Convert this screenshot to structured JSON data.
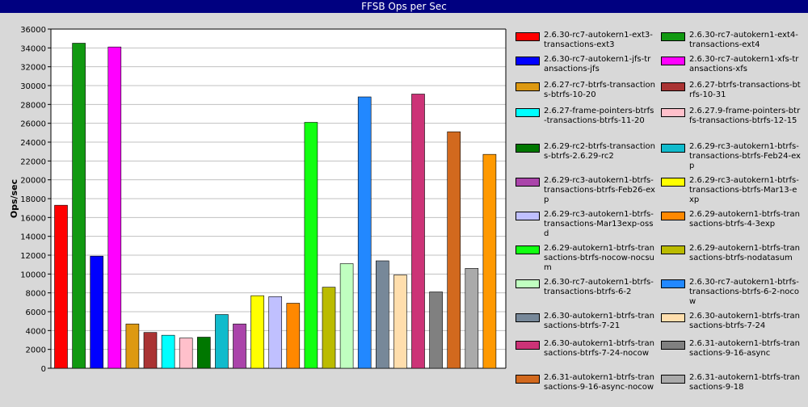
{
  "window": {
    "title": "FFSB Ops per Sec"
  },
  "chart_data": {
    "type": "bar",
    "title": "FFSB Ops per Sec",
    "xlabel": "",
    "ylabel": "Ops/sec",
    "ylim": [
      0,
      36000
    ],
    "yticks": [
      0,
      2000,
      4000,
      6000,
      8000,
      10000,
      12000,
      14000,
      16000,
      18000,
      20000,
      22000,
      24000,
      26000,
      28000,
      30000,
      32000,
      34000,
      36000
    ],
    "grid": true,
    "legend_placement": "right",
    "series": [
      {
        "name": "2.6.30-rc7-autokern1-ext3-transactions-ext3",
        "value": 17300,
        "color": "#ff0000"
      },
      {
        "name": "2.6.30-rc7-autokern1-ext4-transactions-ext4",
        "value": 34500,
        "color": "#119911"
      },
      {
        "name": "2.6.30-rc7-autokern1-jfs-transactions-jfs",
        "value": 11900,
        "color": "#0000ff"
      },
      {
        "name": "2.6.30-rc7-autokern1-xfs-transactions-xfs",
        "value": 34100,
        "color": "#ff00ff"
      },
      {
        "name": "2.6.27-rc7-btrfs-transactions-btrfs-10-20",
        "value": 4700,
        "color": "#dd9911"
      },
      {
        "name": "2.6.27-btrfs-transactions-btrfs-10-31",
        "value": 3800,
        "color": "#aa3333"
      },
      {
        "name": "2.6.27-frame-pointers-btrfs-transactions-btrfs-11-20",
        "value": 3500,
        "color": "#00ffff"
      },
      {
        "name": "2.6.27.9-frame-pointers-btrfs-transactions-btrfs-12-15",
        "value": 3200,
        "color": "#ffc0cb"
      },
      {
        "name": "2.6.29-rc2-btrfs-transactions-btrfs-2.6.29-rc2",
        "value": 3300,
        "color": "#007700"
      },
      {
        "name": "2.6.29-rc3-autokern1-btrfs-transactions-btrfs-Feb24-exp",
        "value": 5700,
        "color": "#11bbcc"
      },
      {
        "name": "2.6.29-rc3-autokern1-btrfs-transactions-btrfs-Feb26-exp",
        "value": 4700,
        "color": "#aa44aa"
      },
      {
        "name": "2.6.29-rc3-autokern1-btrfs-transactions-btrfs-Mar13-exp",
        "value": 7700,
        "color": "#ffff00"
      },
      {
        "name": "2.6.29-rc3-autokern1-btrfs-transactions-Mar13exp-ossd",
        "value": 7600,
        "color": "#c0c0ff"
      },
      {
        "name": "2.6.29-autokern1-btrfs-transactions-btrfs-4-3exp",
        "value": 6900,
        "color": "#ff8800"
      },
      {
        "name": "2.6.29-autokern1-btrfs-transactions-btrfs-nocow-nocsum",
        "value": 26100,
        "color": "#11ff11"
      },
      {
        "name": "2.6.29-autokern1-btrfs-transactions-btrfs-nodatasum",
        "value": 8600,
        "color": "#bbbb00"
      },
      {
        "name": "2.6.30-rc7-autokern1-btrfs-transactions-btrfs-6-2",
        "value": 11100,
        "color": "#c0ffc0"
      },
      {
        "name": "2.6.30-rc7-autokern1-btrfs-transactions-btrfs-6-2-nocow",
        "value": 28800,
        "color": "#2288ff"
      },
      {
        "name": "2.6.30-autokern1-btrfs-transactions-btrfs-7-21",
        "value": 11400,
        "color": "#778899"
      },
      {
        "name": "2.6.30-autokern1-btrfs-transactions-btrfs-7-24",
        "value": 9900,
        "color": "#ffdead"
      },
      {
        "name": "2.6.30-autokern1-btrfs-transactions-btrfs-7-24-nocow",
        "value": 29100,
        "color": "#cc3377"
      },
      {
        "name": "2.6.31-autokern1-btrfs-transactions-9-16-async",
        "value": 8100,
        "color": "#808080"
      },
      {
        "name": "2.6.31-autokern1-btrfs-transactions-9-16-async-nocow",
        "value": 25100,
        "color": "#d2691e"
      },
      {
        "name": "2.6.31-autokern1-btrfs-transactions-9-18",
        "value": 10600,
        "color": "#aaaaaa"
      },
      {
        "name": "",
        "value": 22700,
        "color": "#ff9900"
      }
    ]
  }
}
